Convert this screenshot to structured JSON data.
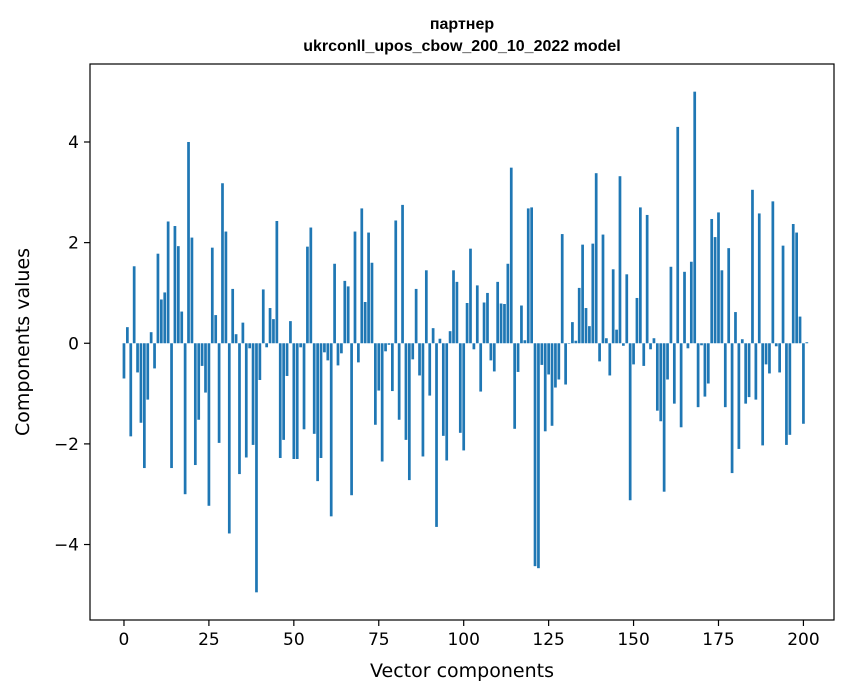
{
  "chart_data": {
    "type": "bar",
    "title_line1": "партнер",
    "title_line2": "ukrconll_upos_cbow_200_10_2022 model",
    "xlabel": "Vector components",
    "ylabel": "Components values",
    "xlim": [
      -10,
      209
    ],
    "ylim": [
      -5.5,
      5.55
    ],
    "xticks": [
      0,
      25,
      50,
      75,
      100,
      125,
      150,
      175,
      200
    ],
    "xtick_labels": [
      "0",
      "25",
      "50",
      "75",
      "100",
      "125",
      "150",
      "175",
      "200"
    ],
    "yticks": [
      -4,
      -2,
      0,
      2,
      4
    ],
    "ytick_labels": [
      "−4",
      "−2",
      "0",
      "2",
      "4"
    ],
    "bar_color": "#1f77b4",
    "values": [
      -0.7,
      0.32,
      -1.85,
      1.53,
      -0.58,
      -1.58,
      -2.48,
      -1.12,
      0.22,
      -0.5,
      1.78,
      0.87,
      1.01,
      2.42,
      -2.48,
      2.33,
      1.93,
      0.63,
      -3.0,
      4.0,
      2.1,
      -2.42,
      -1.52,
      -0.45,
      -0.98,
      -3.23,
      1.9,
      0.56,
      -1.98,
      3.18,
      2.22,
      -3.78,
      1.08,
      0.18,
      -2.6,
      0.41,
      -2.27,
      -0.1,
      -2.02,
      -4.95,
      -0.73,
      1.07,
      -0.08,
      0.7,
      0.48,
      2.43,
      -2.28,
      -1.92,
      -0.65,
      0.44,
      -2.3,
      -2.3,
      -0.08,
      -1.71,
      1.92,
      2.3,
      -1.8,
      -2.74,
      -2.28,
      -0.18,
      -0.34,
      -3.44,
      1.58,
      -0.44,
      -0.2,
      1.24,
      1.13,
      -3.02,
      2.22,
      -0.38,
      2.68,
      0.82,
      2.2,
      1.6,
      -1.62,
      -0.94,
      -2.35,
      -0.16,
      -0.03,
      -0.95,
      2.44,
      -1.52,
      2.75,
      -1.92,
      -2.72,
      -0.32,
      1.08,
      -0.64,
      -2.25,
      1.45,
      -1.04,
      0.3,
      -3.65,
      0.09,
      -1.84,
      -2.33,
      0.24,
      1.45,
      1.22,
      -1.78,
      -2.13,
      0.8,
      1.88,
      -0.12,
      1.15,
      -0.96,
      0.81,
      1.0,
      -0.34,
      -0.56,
      1.22,
      0.79,
      0.78,
      1.58,
      3.49,
      -1.7,
      -0.57,
      0.75,
      0.06,
      2.68,
      2.7,
      -4.43,
      -4.47,
      -0.43,
      -1.75,
      -0.62,
      -1.64,
      -0.88,
      -0.72,
      2.17,
      -0.82,
      0.0,
      0.42,
      0.05,
      1.1,
      1.96,
      0.7,
      0.34,
      1.98,
      3.38,
      -0.36,
      2.16,
      0.1,
      -0.64,
      1.47,
      0.27,
      3.32,
      -0.05,
      1.37,
      -3.12,
      -0.42,
      0.9,
      2.7,
      -0.45,
      2.55,
      -0.12,
      0.1,
      -1.34,
      -1.55,
      -2.95,
      -0.72,
      1.52,
      -1.2,
      4.3,
      -1.67,
      1.42,
      -0.1,
      1.62,
      5.0,
      -1.27,
      -0.04,
      -1.06,
      -0.8,
      2.47,
      2.11,
      2.6,
      1.45,
      -1.27,
      1.89,
      -2.58,
      0.62,
      -2.1,
      0.08,
      -1.2,
      -1.07,
      3.05,
      -1.12,
      2.58,
      -2.03,
      -0.42,
      -0.6,
      2.82,
      -0.06,
      -0.58,
      1.94,
      -2.02,
      -1.82,
      2.37,
      2.2,
      0.53,
      -1.6,
      0.02
    ]
  }
}
